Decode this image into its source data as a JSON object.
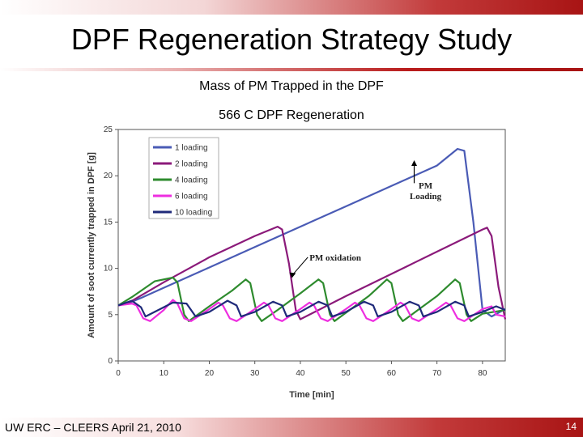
{
  "slide": {
    "title": "DPF Regeneration Strategy Study",
    "subtitle_1": "Mass of PM Trapped in the DPF",
    "subtitle_2": "566 C DPF Regeneration",
    "footer": "UW ERC – CLEERS April 21, 2010",
    "page_number": "14"
  },
  "chart_data": {
    "type": "line",
    "title": "",
    "xlabel": "Time [min]",
    "ylabel": "Amount of soot currently trapped in DPF [g]",
    "xlim": [
      0,
      85
    ],
    "ylim": [
      0,
      25
    ],
    "x_ticks": [
      0,
      10,
      20,
      30,
      40,
      50,
      60,
      70,
      80
    ],
    "y_ticks": [
      0,
      5,
      10,
      15,
      20,
      25
    ],
    "grid": false,
    "legend_position": "top-left",
    "annotations": [
      {
        "text": "PM Loading",
        "x": 65,
        "y": 18
      },
      {
        "text": "PM oxidation",
        "x": 42,
        "y": 11
      }
    ],
    "series": [
      {
        "name": "1 loading",
        "color": "#4a5bb5",
        "points": [
          [
            0,
            6
          ],
          [
            2,
            6.2
          ],
          [
            5,
            6.8
          ],
          [
            10,
            7.9
          ],
          [
            20,
            10.1
          ],
          [
            30,
            12.3
          ],
          [
            40,
            14.5
          ],
          [
            50,
            16.7
          ],
          [
            60,
            18.9
          ],
          [
            70,
            21.1
          ],
          [
            74.5,
            22.9
          ],
          [
            76,
            22.7
          ],
          [
            78,
            15
          ],
          [
            80,
            5.5
          ],
          [
            82,
            4.8
          ],
          [
            85,
            5.6
          ]
        ]
      },
      {
        "name": "2 loading",
        "color": "#8b1a7a",
        "points": [
          [
            0,
            6
          ],
          [
            2,
            6.2
          ],
          [
            10,
            8.5
          ],
          [
            20,
            11.2
          ],
          [
            30,
            13.5
          ],
          [
            35,
            14.5
          ],
          [
            36,
            14.2
          ],
          [
            37.5,
            10.5
          ],
          [
            39,
            5.5
          ],
          [
            40,
            4.5
          ],
          [
            50,
            7
          ],
          [
            60,
            9.4
          ],
          [
            70,
            11.8
          ],
          [
            80,
            14.2
          ],
          [
            81,
            14.4
          ],
          [
            82,
            13.5
          ],
          [
            83.5,
            8
          ],
          [
            85,
            4.5
          ]
        ]
      },
      {
        "name": "4 loading",
        "color": "#2e8b2e",
        "points": [
          [
            0,
            6
          ],
          [
            3,
            6.9
          ],
          [
            8,
            8.6
          ],
          [
            12,
            9
          ],
          [
            13,
            8.5
          ],
          [
            14.5,
            5
          ],
          [
            15.5,
            4.3
          ],
          [
            20,
            5.9
          ],
          [
            25,
            7.6
          ],
          [
            28,
            8.8
          ],
          [
            29,
            8.4
          ],
          [
            30.5,
            5
          ],
          [
            31.5,
            4.3
          ],
          [
            35,
            5.5
          ],
          [
            40,
            7.3
          ],
          [
            44,
            8.8
          ],
          [
            45,
            8.4
          ],
          [
            46.5,
            5
          ],
          [
            47.5,
            4.3
          ],
          [
            50,
            5.2
          ],
          [
            55,
            7
          ],
          [
            59,
            8.8
          ],
          [
            60,
            8.4
          ],
          [
            61.5,
            5
          ],
          [
            62.5,
            4.3
          ],
          [
            65,
            5.2
          ],
          [
            70,
            7
          ],
          [
            74,
            8.8
          ],
          [
            75,
            8.4
          ],
          [
            76.5,
            5
          ],
          [
            77.5,
            4.3
          ],
          [
            80,
            5.1
          ],
          [
            85,
            5.5
          ]
        ]
      },
      {
        "name": "6 loading",
        "color": "#ee2ee0",
        "points": [
          [
            0,
            6
          ],
          [
            3,
            6.2
          ],
          [
            4,
            6
          ],
          [
            5.5,
            4.6
          ],
          [
            7,
            4.3
          ],
          [
            10,
            5.5
          ],
          [
            12,
            6.6
          ],
          [
            13,
            6.2
          ],
          [
            14.5,
            4.6
          ],
          [
            16,
            4.3
          ],
          [
            20,
            5.6
          ],
          [
            22,
            6.3
          ],
          [
            23,
            6
          ],
          [
            24.5,
            4.6
          ],
          [
            26,
            4.3
          ],
          [
            30,
            5.6
          ],
          [
            32,
            6.3
          ],
          [
            33,
            6
          ],
          [
            34.5,
            4.6
          ],
          [
            36,
            4.3
          ],
          [
            40,
            5.6
          ],
          [
            42,
            6.3
          ],
          [
            43,
            6
          ],
          [
            44.5,
            4.6
          ],
          [
            46,
            4.3
          ],
          [
            50,
            5.6
          ],
          [
            52,
            6.3
          ],
          [
            53,
            6
          ],
          [
            54.5,
            4.6
          ],
          [
            56,
            4.3
          ],
          [
            60,
            5.6
          ],
          [
            62,
            6.3
          ],
          [
            63,
            6
          ],
          [
            64.5,
            4.6
          ],
          [
            66,
            4.3
          ],
          [
            70,
            5.6
          ],
          [
            72,
            6.3
          ],
          [
            73,
            6
          ],
          [
            74.5,
            4.6
          ],
          [
            76,
            4.3
          ],
          [
            80,
            5.6
          ],
          [
            82,
            5.9
          ],
          [
            83,
            5
          ],
          [
            85,
            4.8
          ]
        ]
      },
      {
        "name": "10 loading",
        "color": "#1f2a7a",
        "points": [
          [
            0,
            6
          ],
          [
            3,
            6.5
          ],
          [
            5,
            5.8
          ],
          [
            6,
            4.8
          ],
          [
            8,
            5.3
          ],
          [
            12,
            6.3
          ],
          [
            15,
            6.2
          ],
          [
            17,
            4.8
          ],
          [
            20,
            5.3
          ],
          [
            24,
            6.5
          ],
          [
            26,
            6
          ],
          [
            27,
            4.8
          ],
          [
            30,
            5.3
          ],
          [
            34,
            6.4
          ],
          [
            36,
            6
          ],
          [
            37,
            4.8
          ],
          [
            40,
            5.3
          ],
          [
            44,
            6.4
          ],
          [
            46,
            6
          ],
          [
            47,
            4.8
          ],
          [
            50,
            5.3
          ],
          [
            54,
            6.4
          ],
          [
            56,
            6
          ],
          [
            57,
            4.8
          ],
          [
            60,
            5.3
          ],
          [
            64,
            6.4
          ],
          [
            66,
            6
          ],
          [
            67,
            4.8
          ],
          [
            70,
            5.3
          ],
          [
            74,
            6.4
          ],
          [
            76,
            6
          ],
          [
            77,
            4.8
          ],
          [
            80,
            5.3
          ],
          [
            83,
            5.9
          ],
          [
            85,
            5.5
          ]
        ]
      }
    ]
  }
}
